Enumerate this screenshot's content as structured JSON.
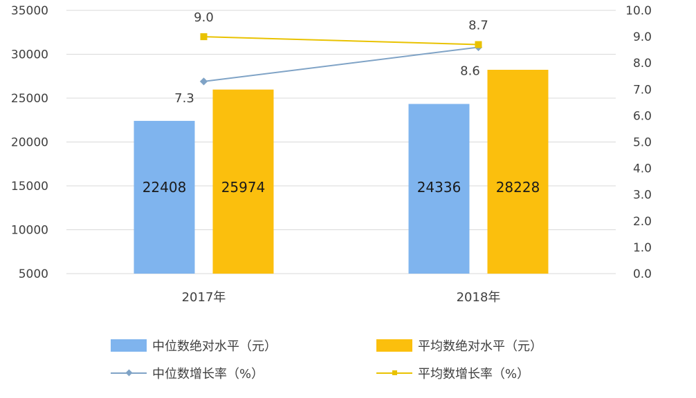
{
  "chart_data": {
    "type": "bar+line",
    "categories": [
      "2017年",
      "2018年"
    ],
    "left_axis": {
      "ylim": [
        5000,
        35000
      ],
      "ticks": [
        5000,
        10000,
        15000,
        20000,
        25000,
        30000,
        35000
      ]
    },
    "right_axis": {
      "ylim": [
        0.0,
        10.0
      ],
      "ticks": [
        "0.0",
        "1.0",
        "2.0",
        "3.0",
        "4.0",
        "5.0",
        "6.0",
        "7.0",
        "8.0",
        "9.0",
        "10.0"
      ]
    },
    "bar_series": [
      {
        "name": "中位数绝对水平（元）",
        "color": "#7fb4ee",
        "values": [
          22408,
          24336
        ]
      },
      {
        "name": "平均数绝对水平（元）",
        "color": "#fbbf0d",
        "values": [
          25974,
          28228
        ]
      }
    ],
    "line_series": [
      {
        "name": "中位数增长率（%）",
        "color": "#7fa3c6",
        "marker": "diamond",
        "values": [
          7.3,
          8.6
        ],
        "labels": [
          "7.3",
          "8.6"
        ]
      },
      {
        "name": "平均数增长率（%）",
        "color": "#e9c200",
        "marker": "square",
        "values": [
          9.0,
          8.7
        ],
        "labels": [
          "9.0",
          "8.7"
        ]
      }
    ],
    "gridlines": true
  }
}
